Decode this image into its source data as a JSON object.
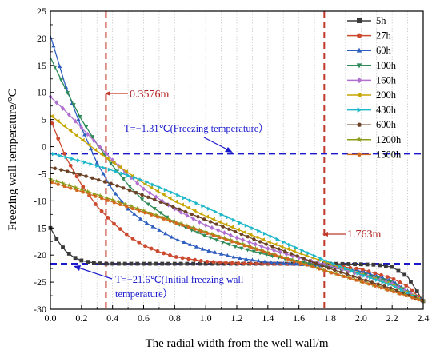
{
  "chart_data": {
    "type": "line",
    "xlabel": "The radial width from the well wall/m",
    "ylabel": "Freezing wall temperature/°C",
    "xlim": [
      0,
      2.4
    ],
    "ylim": [
      -30,
      25
    ],
    "xticks": [
      0.0,
      0.2,
      0.4,
      0.6,
      0.8,
      1.0,
      1.2,
      1.4,
      1.6,
      1.8,
      2.0,
      2.2,
      2.4
    ],
    "xtick_labels": [
      "0.0",
      "0.2",
      "0.4",
      "0.6",
      "0.8",
      "1.0",
      "1.2",
      "1.4",
      "1.6",
      "1.8",
      "2.0",
      "2.2",
      "2.4"
    ],
    "yticks": [
      -30,
      -25,
      -20,
      -15,
      -10,
      -5,
      0,
      5,
      10,
      15,
      20,
      25
    ],
    "ytick_labels": [
      "-30",
      "-25",
      "-20",
      "-15",
      "-10",
      "-5",
      "0",
      "5",
      "10",
      "15",
      "20",
      "25"
    ],
    "grid": "vertical dotted",
    "legend": "top-right",
    "series": [
      {
        "name": "5h",
        "color": "#3a3a3a",
        "marker": "square",
        "x": [
          0,
          0.05,
          0.1,
          0.15,
          0.2,
          0.25,
          0.3,
          0.35,
          0.4,
          0.6,
          0.8,
          1.0,
          1.2,
          1.4,
          1.6,
          1.8,
          2.0,
          2.1,
          2.2,
          2.3,
          2.4
        ],
        "y": [
          -15.0,
          -17.5,
          -19.3,
          -20.4,
          -21.0,
          -21.3,
          -21.5,
          -21.6,
          -21.6,
          -21.6,
          -21.6,
          -21.6,
          -21.6,
          -21.6,
          -21.6,
          -21.6,
          -21.7,
          -21.8,
          -22.2,
          -24.0,
          -28.5
        ]
      },
      {
        "name": "27h",
        "color": "#cc4a2f",
        "marker": "circle",
        "x": [
          0,
          0.1,
          0.2,
          0.3,
          0.4,
          0.5,
          0.6,
          0.7,
          0.8,
          1.0,
          1.2,
          1.4,
          1.6,
          1.8,
          2.0,
          2.2,
          2.3,
          2.4
        ],
        "y": [
          5.0,
          -2.0,
          -7.0,
          -11.0,
          -14.0,
          -16.4,
          -18.2,
          -19.4,
          -20.3,
          -21.2,
          -21.5,
          -21.6,
          -21.7,
          -21.9,
          -22.6,
          -24.3,
          -25.8,
          -28.5
        ]
      },
      {
        "name": "60h",
        "color": "#2e5fbf",
        "marker": "triangle",
        "x": [
          0,
          0.1,
          0.2,
          0.3,
          0.4,
          0.5,
          0.6,
          0.8,
          1.0,
          1.2,
          1.4,
          1.6,
          1.8,
          2.0,
          2.2,
          2.4
        ],
        "y": [
          20.5,
          11.0,
          3.5,
          -3.0,
          -8.0,
          -11.5,
          -13.8,
          -17.0,
          -19.1,
          -20.5,
          -21.3,
          -21.7,
          -22.1,
          -23.0,
          -24.8,
          -28.5
        ]
      },
      {
        "name": "100h",
        "color": "#2e8b57",
        "marker": "triangle-down",
        "x": [
          0,
          0.1,
          0.2,
          0.3,
          0.4,
          0.5,
          0.6,
          0.8,
          1.0,
          1.2,
          1.4,
          1.6,
          1.8,
          2.0,
          2.2,
          2.4
        ],
        "y": [
          16.5,
          10.5,
          5.0,
          0.5,
          -3.5,
          -7.0,
          -10.0,
          -14.0,
          -16.5,
          -18.5,
          -20.0,
          -21.2,
          -22.2,
          -23.4,
          -25.0,
          -28.5
        ]
      },
      {
        "name": "160h",
        "color": "#b070d0",
        "marker": "diamond",
        "x": [
          0,
          0.1,
          0.2,
          0.3,
          0.4,
          0.5,
          0.6,
          0.8,
          1.0,
          1.2,
          1.4,
          1.6,
          1.8,
          2.0,
          2.2,
          2.4
        ],
        "y": [
          9.2,
          6.5,
          3.5,
          0.5,
          -2.5,
          -5.2,
          -7.8,
          -11.5,
          -14.5,
          -16.8,
          -18.8,
          -20.5,
          -22.0,
          -23.6,
          -25.3,
          -28.5
        ]
      },
      {
        "name": "200h",
        "color": "#c8a400",
        "marker": "triangle-left",
        "x": [
          0,
          0.1,
          0.2,
          0.3,
          0.4,
          0.5,
          0.6,
          0.8,
          1.0,
          1.2,
          1.4,
          1.6,
          1.8,
          2.0,
          2.2,
          2.4
        ],
        "y": [
          5.8,
          3.6,
          1.4,
          -0.8,
          -2.8,
          -4.8,
          -6.7,
          -10.0,
          -12.8,
          -15.2,
          -17.5,
          -19.6,
          -21.6,
          -23.5,
          -25.5,
          -28.5
        ]
      },
      {
        "name": "430h",
        "color": "#1fb8c8",
        "marker": "triangle-right",
        "x": [
          0,
          0.2,
          0.4,
          0.6,
          0.8,
          1.0,
          1.2,
          1.4,
          1.6,
          1.8,
          2.0,
          2.2,
          2.4
        ],
        "y": [
          -1.2,
          -2.7,
          -4.4,
          -6.3,
          -8.7,
          -11.2,
          -13.8,
          -16.3,
          -18.9,
          -21.4,
          -23.6,
          -25.6,
          -28.5
        ]
      },
      {
        "name": "600h",
        "color": "#6b4226",
        "marker": "hexagon",
        "x": [
          0,
          0.2,
          0.4,
          0.6,
          0.8,
          1.0,
          1.2,
          1.4,
          1.6,
          1.8,
          2.0,
          2.2,
          2.4
        ],
        "y": [
          -3.8,
          -5.2,
          -6.9,
          -9.0,
          -11.2,
          -13.5,
          -15.8,
          -18.1,
          -20.3,
          -22.5,
          -24.4,
          -26.2,
          -28.5
        ]
      },
      {
        "name": "1200h",
        "color": "#8c9c1a",
        "marker": "star",
        "x": [
          0,
          0.2,
          0.4,
          0.6,
          0.8,
          1.0,
          1.2,
          1.4,
          1.6,
          1.8,
          2.0,
          2.2,
          2.4
        ],
        "y": [
          -6.0,
          -7.9,
          -9.8,
          -11.8,
          -13.8,
          -15.7,
          -17.6,
          -19.5,
          -21.3,
          -23.1,
          -24.9,
          -26.6,
          -28.5
        ]
      },
      {
        "name": "1500h",
        "color": "#d2691e",
        "marker": "pentagon",
        "x": [
          0,
          0.2,
          0.4,
          0.6,
          0.8,
          1.0,
          1.2,
          1.4,
          1.6,
          1.8,
          2.0,
          2.2,
          2.4
        ],
        "y": [
          -6.5,
          -8.3,
          -10.2,
          -12.1,
          -14.0,
          -15.9,
          -17.8,
          -19.6,
          -21.4,
          -23.2,
          -24.9,
          -26.7,
          -28.5
        ]
      }
    ],
    "reference_lines": {
      "vertical": [
        {
          "x": 0.3576,
          "color": "#c0392b",
          "label": "0.3576m"
        },
        {
          "x": 1.763,
          "color": "#c0392b",
          "label": "1.763m"
        }
      ],
      "horizontal": [
        {
          "y": -1.31,
          "color": "#1a1acc",
          "label": "T=−1.31℃(Freezing temperature）"
        },
        {
          "y": -21.6,
          "color": "#1a1acc",
          "label_line1": "T=−21.6℃(Initial freezing wall",
          "label_line2": "temperature）"
        }
      ]
    }
  }
}
